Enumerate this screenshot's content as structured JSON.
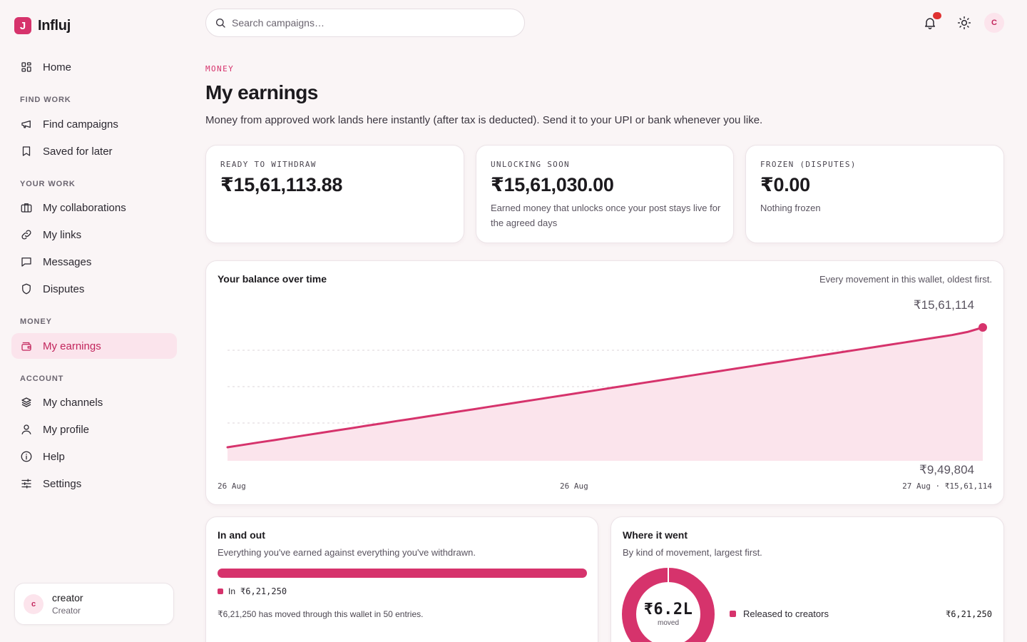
{
  "brand": {
    "logo_letter": "J",
    "name": "Influj"
  },
  "nav": {
    "home": "Home",
    "sections": {
      "find_work": "FIND WORK",
      "your_work": "YOUR WORK",
      "money": "MONEY",
      "account": "ACCOUNT"
    },
    "find_campaigns": "Find campaigns",
    "saved_for_later": "Saved for later",
    "my_collaborations": "My collaborations",
    "my_links": "My links",
    "messages": "Messages",
    "disputes": "Disputes",
    "my_earnings": "My earnings",
    "my_channels": "My channels",
    "my_profile": "My profile",
    "help": "Help",
    "settings": "Settings",
    "active_item": "my_earnings"
  },
  "user": {
    "initial": "c",
    "name": "creator",
    "role": "Creator"
  },
  "search": {
    "placeholder": "Search campaigns…",
    "value": ""
  },
  "topbar": {
    "avatar_initial": "C",
    "icons": [
      "bell-icon",
      "sun-icon"
    ]
  },
  "page": {
    "eyebrow": "MONEY",
    "title": "My earnings",
    "description": "Money from approved work lands here instantly (after tax is deducted). Send it to your UPI or bank whenever you like."
  },
  "stats": [
    {
      "label": "READY TO WITHDRAW",
      "value": "₹15,61,113.88",
      "note": ""
    },
    {
      "label": "UNLOCKING SOON",
      "value": "₹15,61,030.00",
      "note": "Earned money that unlocks once your post stays live for the agreed days"
    },
    {
      "label": "FROZEN (DISPUTES)",
      "value": "₹0.00",
      "note": "Nothing frozen"
    }
  ],
  "balance_chart": {
    "title": "Your balance over time",
    "caption": "Every movement in this wallet, oldest first.",
    "max_label": "₹15,61,114",
    "min_label": "₹9,49,804",
    "x_ticks": [
      "26 Aug",
      "26 Aug",
      "27 Aug · ₹15,61,114"
    ]
  },
  "in_out": {
    "title": "In and out",
    "subtitle": "Everything you've earned against everything you've withdrawn.",
    "in_label": "In",
    "in_amount": "₹6,21,250",
    "in_fraction": 1.0,
    "note": "₹6,21,250 has moved through this wallet in 50 entries."
  },
  "where_it_went": {
    "title": "Where it went",
    "subtitle": "By kind of movement, largest first.",
    "center_value": "₹6.2L",
    "center_label": "moved",
    "rows": [
      {
        "label": "Released to creators",
        "amount": "₹6,21,250"
      }
    ]
  },
  "colors": {
    "accent": "#d6336c",
    "accent_soft": "#fbe4ec",
    "background": "#faf5f6"
  },
  "chart_data": {
    "type": "area",
    "title": "Your balance over time",
    "xlabel": "",
    "ylabel": "",
    "x": [
      1,
      2,
      3,
      4,
      5,
      6,
      7,
      8,
      9,
      10,
      11,
      12,
      13,
      14,
      15,
      16,
      17,
      18,
      19,
      20,
      21,
      22,
      23,
      24,
      25,
      26,
      27,
      28,
      29,
      30,
      31,
      32,
      33,
      34,
      35,
      36,
      37,
      38,
      39,
      40,
      41,
      42,
      43,
      44,
      45,
      46,
      47,
      48,
      49,
      50
    ],
    "series": [
      {
        "values": [
          949804,
          961800,
          974200,
          986000,
          998300,
          1010500,
          1022400,
          1034800,
          1046700,
          1059200,
          1071300,
          1083600,
          1095400,
          1107800,
          1119900,
          1132100,
          1144000,
          1156400,
          1168600,
          1180700,
          1192900,
          1205300,
          1217200,
          1229600,
          1241700,
          1254000,
          1266100,
          1278300,
          1290500,
          1302600,
          1314800,
          1327100,
          1339200,
          1351400,
          1363700,
          1375800,
          1388000,
          1400200,
          1412500,
          1424600,
          1436900,
          1449000,
          1461200,
          1473400,
          1485600,
          1497800,
          1510000,
          1522200,
          1538000,
          1561114
        ]
      }
    ],
    "ylim": [
      949804,
      1561114
    ],
    "grid": true
  }
}
